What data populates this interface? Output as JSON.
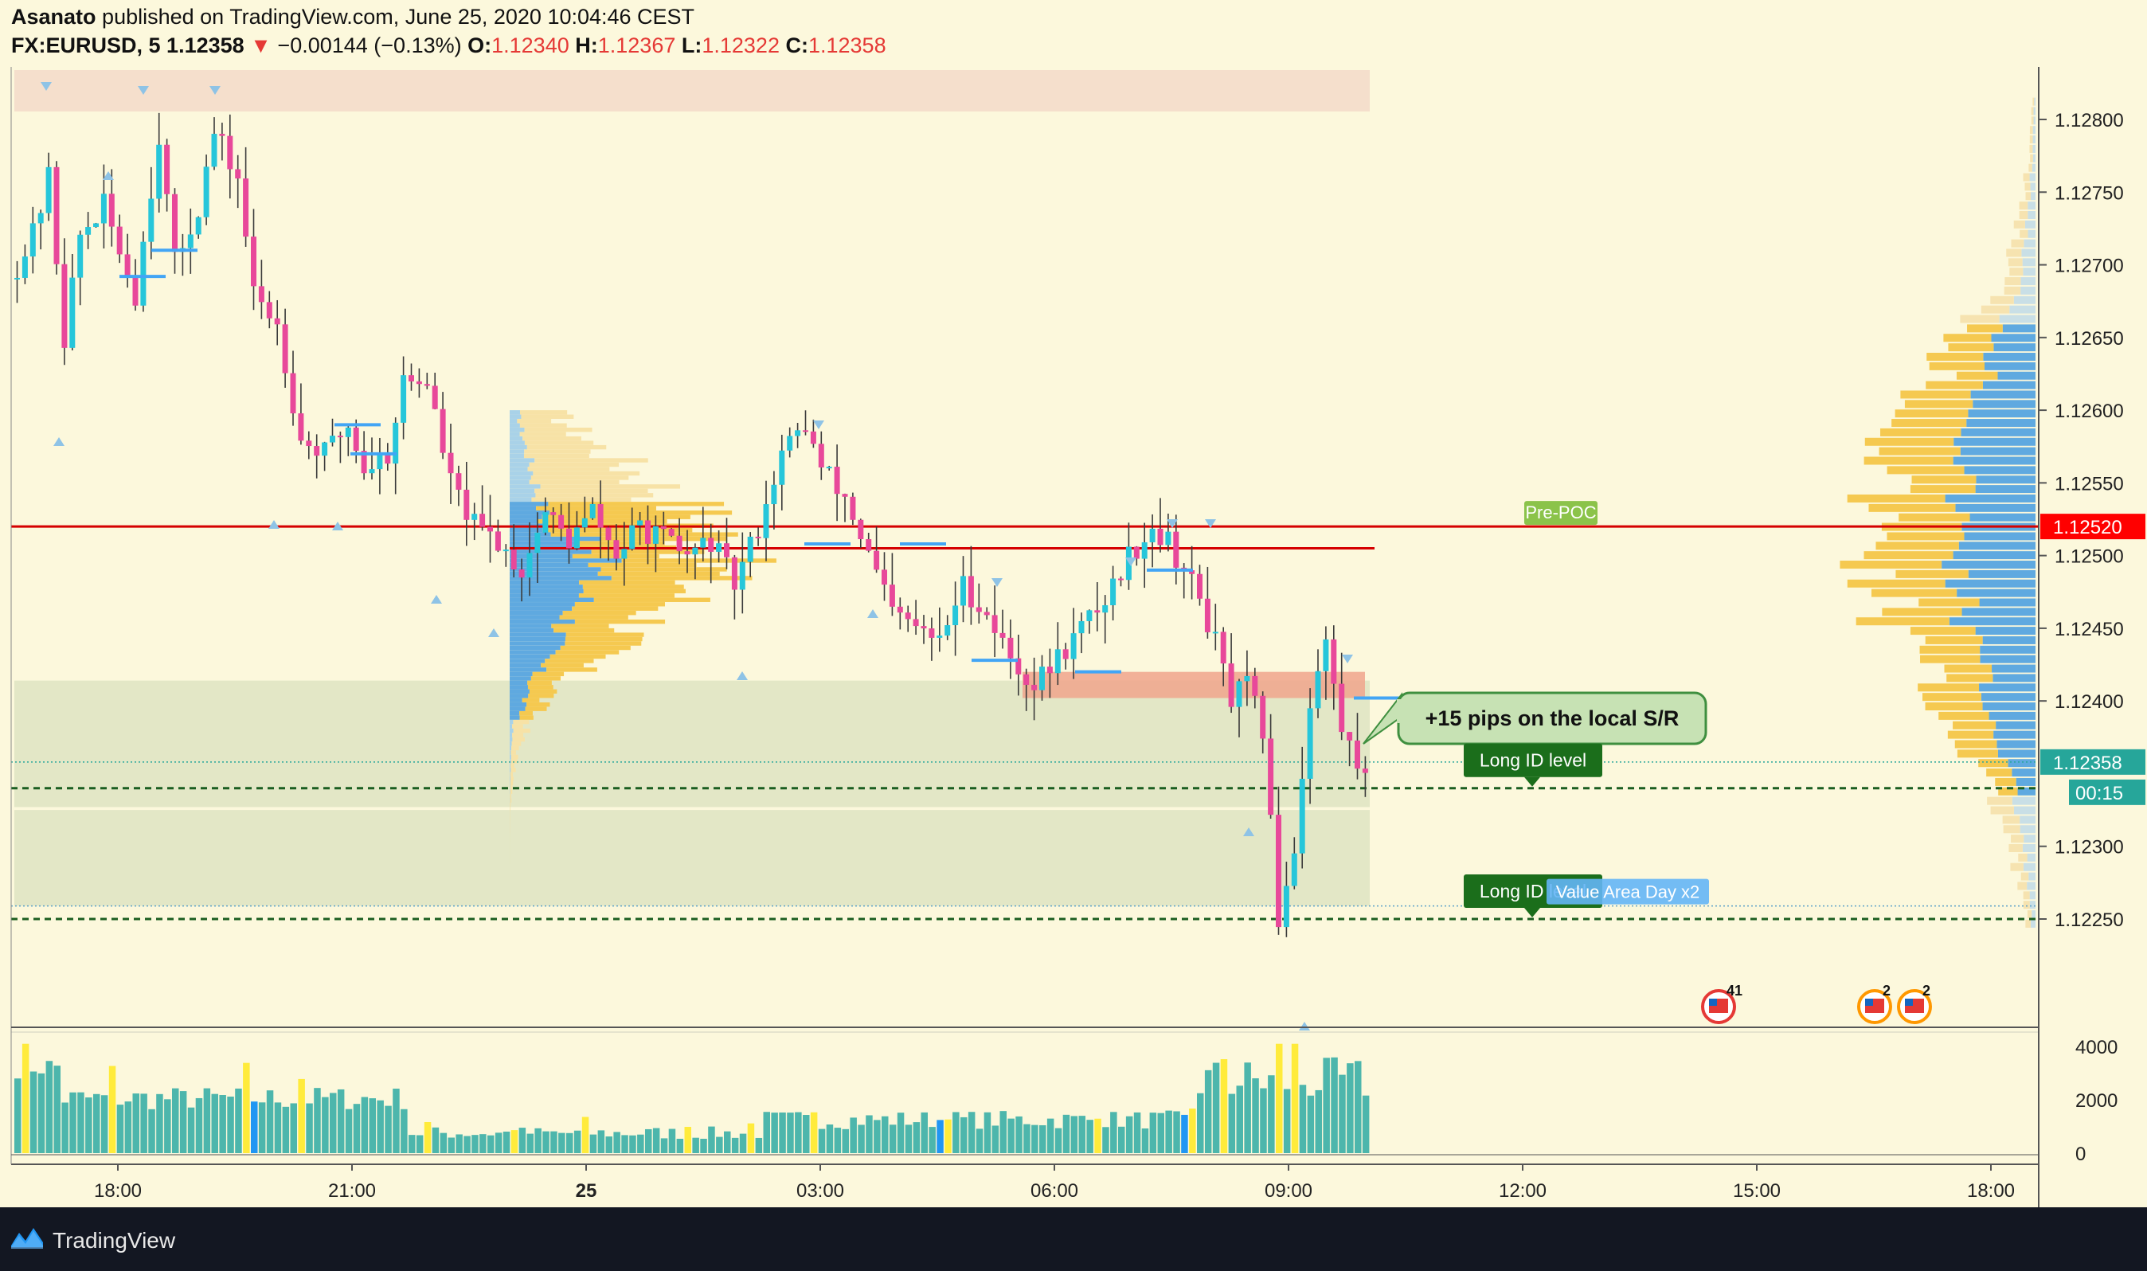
{
  "header": {
    "author": "Asanato",
    "published_text": "published on TradingView.com, June 25, 2020 10:04:46 CEST",
    "symbol": "FX:EURUSD, 5",
    "last": "1.12358",
    "change_arrow": "▼",
    "change": "−0.00144 (−0.13%)",
    "o_label": "O:",
    "o": "1.12340",
    "h_label": "H:",
    "h": "1.12367",
    "l_label": "L:",
    "l": "1.12322",
    "c_label": "C:",
    "c": "1.12358"
  },
  "footer": {
    "brand": "TradingView",
    "logo_icon": "tradingview-logo-icon"
  },
  "colors": {
    "background": "#fcf8dc",
    "bull": "#26c6da",
    "bear": "#e8489a",
    "poc_line": "#d50000",
    "long_level": "#1b5e20",
    "volume_bar": "#4db6ac",
    "volume_highlight": "#ffeb3b",
    "volume_blue": "#2196f3",
    "profile_blue": "#5fa9e0",
    "profile_yellow": "#f5c950"
  },
  "chart_data": {
    "type": "candlestick",
    "symbol": "FX:EURUSD",
    "timeframe": "5",
    "x_ticks": [
      "18:00",
      "21:00",
      "25",
      "03:00",
      "06:00",
      "09:00",
      "12:00",
      "15:00",
      "18:00"
    ],
    "y_ticks": [
      "1.12800",
      "1.12750",
      "1.12700",
      "1.12650",
      "1.12600",
      "1.12550",
      "1.12500",
      "1.12450",
      "1.12400",
      "1.12300",
      "1.12250"
    ],
    "ylim": [
      1.12235,
      1.12825
    ],
    "volume_ticks": [
      "4000",
      "2000",
      "0"
    ],
    "volume_lim": [
      0,
      4300
    ],
    "price_labels": [
      {
        "value": "1.12520",
        "color": "#ff0000"
      },
      {
        "value": "1.12358",
        "color": "#26a69a"
      }
    ],
    "countdown": "00:15",
    "levels": {
      "pre_poc": 1.1252,
      "session_poc": 1.12505,
      "long_id_1": 1.1234,
      "long_id_2": 1.1225,
      "last_price": 1.12358
    },
    "annotations": {
      "pre_poc_label": "Pre-POC",
      "callout": "+15 pips on the local S/R",
      "long_id_1": "Long ID level",
      "long_id_2": "Long ID level",
      "value_area": "Value Area Day x2",
      "event_1": "41",
      "event_2": "2",
      "event_3": "2"
    },
    "series": [
      {
        "name": "price",
        "anchors": [
          [
            0,
            1.1269
          ],
          [
            3,
            1.1272
          ],
          [
            5,
            1.1276
          ],
          [
            7,
            1.1265
          ],
          [
            9,
            1.1272
          ],
          [
            12,
            1.1274
          ],
          [
            16,
            1.1268
          ],
          [
            19,
            1.1279
          ],
          [
            21,
            1.127
          ],
          [
            24,
            1.1274
          ],
          [
            26,
            1.1279
          ],
          [
            29,
            1.1276
          ],
          [
            31,
            1.1268
          ],
          [
            34,
            1.1266
          ],
          [
            37,
            1.1258
          ],
          [
            40,
            1.1257
          ],
          [
            43,
            1.1259
          ],
          [
            45,
            1.1256
          ],
          [
            48,
            1.1257
          ],
          [
            50,
            1.1262
          ],
          [
            53,
            1.1262
          ],
          [
            56,
            1.1255
          ],
          [
            59,
            1.1252
          ],
          [
            62,
            1.1251
          ],
          [
            65,
            1.1249
          ],
          [
            68,
            1.1253
          ],
          [
            71,
            1.1251
          ],
          [
            74,
            1.1253
          ],
          [
            77,
            1.125
          ],
          [
            80,
            1.1252
          ],
          [
            83,
            1.1251
          ],
          [
            86,
            1.125
          ],
          [
            89,
            1.1251
          ],
          [
            92,
            1.1248
          ],
          [
            95,
            1.1252
          ],
          [
            98,
            1.1257
          ],
          [
            101,
            1.1259
          ],
          [
            103,
            1.1256
          ],
          [
            106,
            1.1254
          ],
          [
            109,
            1.125
          ],
          [
            112,
            1.1246
          ],
          [
            115,
            1.1245
          ],
          [
            118,
            1.1244
          ],
          [
            121,
            1.1248
          ],
          [
            124,
            1.1246
          ],
          [
            127,
            1.1243
          ],
          [
            130,
            1.1241
          ],
          [
            133,
            1.1243
          ],
          [
            136,
            1.1245
          ],
          [
            139,
            1.1247
          ],
          [
            142,
            1.125
          ],
          [
            145,
            1.1252
          ],
          [
            147,
            1.1251
          ],
          [
            149,
            1.1249
          ],
          [
            151,
            1.1247
          ],
          [
            153,
            1.1244
          ],
          [
            155,
            1.124
          ],
          [
            157,
            1.1241
          ],
          [
            159,
            1.1238
          ],
          [
            161,
            1.1225
          ],
          [
            163,
            1.123
          ],
          [
            165,
            1.124
          ],
          [
            167,
            1.1244
          ],
          [
            169,
            1.1238
          ],
          [
            171,
            1.12358
          ]
        ]
      }
    ],
    "volume_pattern": "moderate early session, low overnight, rising into 09:00 open"
  }
}
